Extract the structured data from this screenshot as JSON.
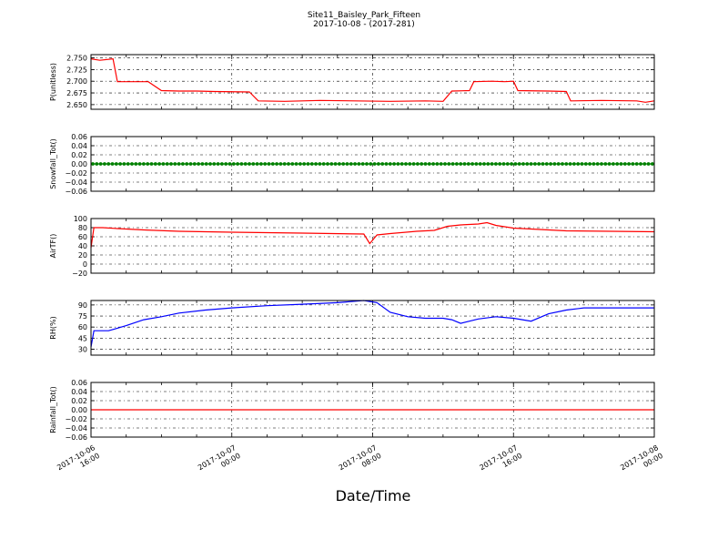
{
  "title": "Site11_Baisley_Park_Fifteen",
  "subtitle": "2017-10-08 - (2017-281)",
  "xlabel": "Date/Time",
  "x_ticks": [
    {
      "x": "2017-10-06 16:00",
      "l1": "2017-10-06",
      "l2": "16:00"
    },
    {
      "x": "2017-10-07 00:00",
      "l1": "2017-10-07",
      "l2": "00:00"
    },
    {
      "x": "2017-10-07 08:00",
      "l1": "2017-10-07",
      "l2": "08:00"
    },
    {
      "x": "2017-10-07 16:00",
      "l1": "2017-10-07",
      "l2": "16:00"
    },
    {
      "x": "2017-10-08 00:00",
      "l1": "2017-10-08",
      "l2": "00:00"
    }
  ],
  "chart_data": [
    {
      "type": "line",
      "ylabel": "P(unitless)",
      "xlim": [
        "2017-10-06 16:00",
        "2017-10-08 00:00"
      ],
      "ylim": [
        2.64,
        2.757
      ],
      "yticks": [
        "2.750",
        "2.725",
        "2.700",
        "2.675",
        "2.650"
      ],
      "ytick_values": [
        2.75,
        2.725,
        2.7,
        2.675,
        2.65
      ],
      "grid": true,
      "series": [
        {
          "color": "#ff0000",
          "points": [
            [
              "2017-10-06 16:00",
              2.748
            ],
            [
              "2017-10-06 16:30",
              2.745
            ],
            [
              "2017-10-06 17:15",
              2.748
            ],
            [
              "2017-10-06 17:30",
              2.699
            ],
            [
              "2017-10-06 19:15",
              2.699
            ],
            [
              "2017-10-06 20:00",
              2.68
            ],
            [
              "2017-10-06 21:00",
              2.679
            ],
            [
              "2017-10-06 22:00",
              2.679
            ],
            [
              "2017-10-06 23:00",
              2.678
            ],
            [
              "2017-10-07 01:00",
              2.677
            ],
            [
              "2017-10-07 01:30",
              2.658
            ],
            [
              "2017-10-07 03:00",
              2.657
            ],
            [
              "2017-10-07 05:00",
              2.659
            ],
            [
              "2017-10-07 07:00",
              2.658
            ],
            [
              "2017-10-07 09:00",
              2.657
            ],
            [
              "2017-10-07 11:00",
              2.658
            ],
            [
              "2017-10-07 12:00",
              2.657
            ],
            [
              "2017-10-07 12:30",
              2.679
            ],
            [
              "2017-10-07 13:30",
              2.68
            ],
            [
              "2017-10-07 13:45",
              2.699
            ],
            [
              "2017-10-07 14:45",
              2.7
            ],
            [
              "2017-10-07 15:30",
              2.699
            ],
            [
              "2017-10-07 16:00",
              2.7
            ],
            [
              "2017-10-07 16:15",
              2.68
            ],
            [
              "2017-10-07 18:00",
              2.679
            ],
            [
              "2017-10-07 19:00",
              2.678
            ],
            [
              "2017-10-07 19:15",
              2.658
            ],
            [
              "2017-10-07 21:00",
              2.659
            ],
            [
              "2017-10-07 23:00",
              2.658
            ],
            [
              "2017-10-07 23:30",
              2.655
            ],
            [
              "2017-10-08 00:00",
              2.658
            ]
          ]
        }
      ]
    },
    {
      "type": "line",
      "ylabel": "Snowfall_Tot()",
      "xlim": [
        "2017-10-06 16:00",
        "2017-10-08 00:00"
      ],
      "ylim": [
        -0.06,
        0.06
      ],
      "yticks": [
        "0.06",
        "0.04",
        "0.02",
        "0.00",
        "−0.02",
        "−0.04",
        "−0.06"
      ],
      "ytick_values": [
        0.06,
        0.04,
        0.02,
        0.0,
        -0.02,
        -0.04,
        -0.06
      ],
      "grid": true,
      "series": [
        {
          "color": "#008000",
          "marker": "dot",
          "constant": 0.0,
          "points": [
            [
              "2017-10-06 16:00",
              0.0
            ],
            [
              "2017-10-08 00:00",
              0.0
            ]
          ]
        }
      ]
    },
    {
      "type": "line",
      "ylabel": "AirTF()",
      "xlim": [
        "2017-10-06 16:00",
        "2017-10-08 00:00"
      ],
      "ylim": [
        -20,
        100
      ],
      "yticks": [
        "100",
        "80",
        "60",
        "40",
        "20",
        "0",
        "−20"
      ],
      "ytick_values": [
        100,
        80,
        60,
        40,
        20,
        0,
        -20
      ],
      "grid": true,
      "series": [
        {
          "color": "#ff0000",
          "points": [
            [
              "2017-10-06 16:00",
              36
            ],
            [
              "2017-10-06 16:10",
              80
            ],
            [
              "2017-10-06 16:40",
              80
            ],
            [
              "2017-10-06 17:30",
              78
            ],
            [
              "2017-10-06 19:00",
              75
            ],
            [
              "2017-10-06 21:00",
              72
            ],
            [
              "2017-10-07 00:00",
              70
            ],
            [
              "2017-10-07 04:00",
              68
            ],
            [
              "2017-10-07 07:30",
              66
            ],
            [
              "2017-10-07 07:50",
              45
            ],
            [
              "2017-10-07 08:15",
              64
            ],
            [
              "2017-10-07 09:00",
              67
            ],
            [
              "2017-10-07 10:30",
              72
            ],
            [
              "2017-10-07 11:30",
              74
            ],
            [
              "2017-10-07 12:15",
              83
            ],
            [
              "2017-10-07 13:00",
              86
            ],
            [
              "2017-10-07 14:00",
              88
            ],
            [
              "2017-10-07 14:30",
              91
            ],
            [
              "2017-10-07 15:00",
              85
            ],
            [
              "2017-10-07 16:00",
              79
            ],
            [
              "2017-10-07 17:30",
              76
            ],
            [
              "2017-10-07 19:00",
              73
            ],
            [
              "2017-10-08 00:00",
              71
            ]
          ]
        }
      ]
    },
    {
      "type": "line",
      "ylabel": "RH(%)",
      "xlim": [
        "2017-10-06 16:00",
        "2017-10-08 00:00"
      ],
      "ylim": [
        22,
        96
      ],
      "yticks": [
        "90",
        "75",
        "60",
        "45",
        "30"
      ],
      "ytick_values": [
        90,
        75,
        60,
        45,
        30
      ],
      "grid": true,
      "series": [
        {
          "color": "#0000ff",
          "points": [
            [
              "2017-10-06 16:00",
              33
            ],
            [
              "2017-10-06 16:10",
              55
            ],
            [
              "2017-10-06 17:00",
              55
            ],
            [
              "2017-10-06 18:00",
              62
            ],
            [
              "2017-10-06 19:00",
              70
            ],
            [
              "2017-10-06 20:00",
              74
            ],
            [
              "2017-10-06 21:00",
              79
            ],
            [
              "2017-10-06 22:30",
              83
            ],
            [
              "2017-10-07 00:00",
              86
            ],
            [
              "2017-10-07 02:00",
              89
            ],
            [
              "2017-10-07 04:00",
              91
            ],
            [
              "2017-10-07 06:00",
              93
            ],
            [
              "2017-10-07 07:30",
              96
            ],
            [
              "2017-10-07 08:15",
              93
            ],
            [
              "2017-10-07 09:00",
              80
            ],
            [
              "2017-10-07 10:00",
              74
            ],
            [
              "2017-10-07 11:00",
              72
            ],
            [
              "2017-10-07 12:00",
              72
            ],
            [
              "2017-10-07 12:30",
              70
            ],
            [
              "2017-10-07 13:00",
              65
            ],
            [
              "2017-10-07 13:30",
              68
            ],
            [
              "2017-10-07 14:00",
              71
            ],
            [
              "2017-10-07 15:00",
              74
            ],
            [
              "2017-10-07 16:00",
              72
            ],
            [
              "2017-10-07 17:00",
              68
            ],
            [
              "2017-10-07 18:00",
              78
            ],
            [
              "2017-10-07 19:00",
              83
            ],
            [
              "2017-10-07 20:00",
              86
            ],
            [
              "2017-10-08 00:00",
              86
            ]
          ]
        }
      ]
    },
    {
      "type": "line",
      "ylabel": "Rainfall_Tot()",
      "xlim": [
        "2017-10-06 16:00",
        "2017-10-08 00:00"
      ],
      "ylim": [
        -0.06,
        0.06
      ],
      "yticks": [
        "0.06",
        "0.04",
        "0.02",
        "0.00",
        "−0.02",
        "−0.04",
        "−0.06"
      ],
      "ytick_values": [
        0.06,
        0.04,
        0.02,
        0.0,
        -0.02,
        -0.04,
        -0.06
      ],
      "grid": true,
      "series": [
        {
          "color": "#ff0000",
          "points": [
            [
              "2017-10-06 16:00",
              0.0
            ],
            [
              "2017-10-08 00:00",
              0.0
            ]
          ]
        }
      ]
    }
  ]
}
